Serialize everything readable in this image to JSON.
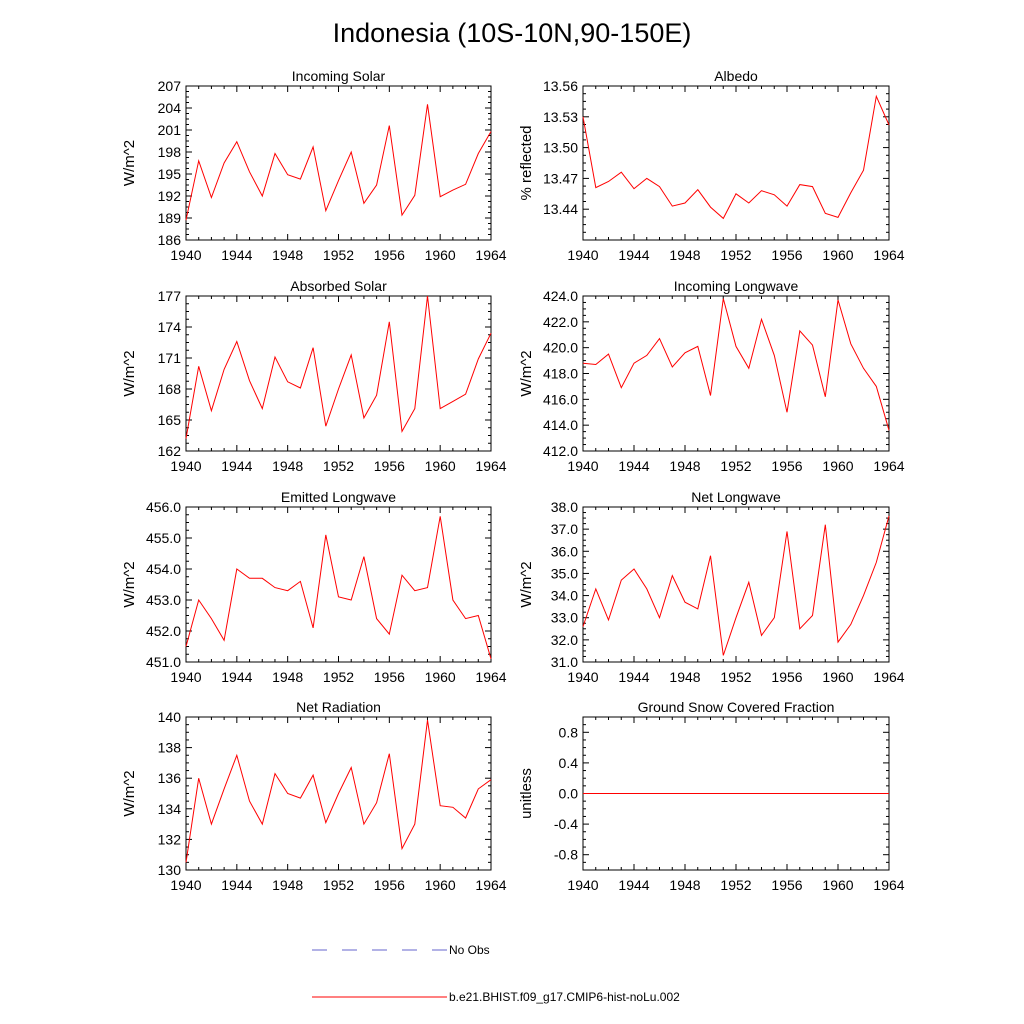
{
  "title": "Indonesia (10S-10N,90-150E)",
  "colors": {
    "model": "#ff0000",
    "obs": "#6666cc"
  },
  "legend": [
    {
      "label": "No Obs",
      "color": "#6666cc",
      "dash": true
    },
    {
      "label": "b.e21.BHIST.f09_g17.CMIP6-hist-noLu.002",
      "color": "#ff0000",
      "dash": false
    }
  ],
  "chart_data": [
    {
      "type": "line",
      "title": "Incoming Solar",
      "ylabel": "W/m^2",
      "xlim": [
        1940,
        1964
      ],
      "ylim": [
        186,
        207
      ],
      "xticks": [
        1940,
        1944,
        1948,
        1952,
        1956,
        1960,
        1964
      ],
      "yticks": [
        "186",
        "189",
        "192",
        "195",
        "198",
        "201",
        "204",
        "207"
      ],
      "x": [
        1940,
        1941,
        1942,
        1943,
        1944,
        1945,
        1946,
        1947,
        1948,
        1949,
        1950,
        1951,
        1952,
        1953,
        1954,
        1955,
        1956,
        1957,
        1958,
        1959,
        1960,
        1961,
        1962,
        1963,
        1964
      ],
      "series": [
        {
          "values": [
            188.7,
            196.8,
            191.8,
            196.5,
            199.4,
            195.3,
            192.0,
            197.8,
            194.9,
            194.3,
            198.7,
            190.0,
            194.1,
            198.0,
            191.0,
            193.5,
            201.6,
            189.4,
            192.1,
            204.5,
            191.9,
            192.8,
            193.6,
            197.8,
            200.8
          ]
        }
      ]
    },
    {
      "type": "line",
      "title": "Albedo",
      "ylabel": "% reflected",
      "xlim": [
        1940,
        1964
      ],
      "ylim": [
        13.41,
        13.56
      ],
      "xticks": [
        1940,
        1944,
        1948,
        1952,
        1956,
        1960,
        1964
      ],
      "yticks": [
        "13.44",
        "13.47",
        "13.50",
        "13.53",
        "13.56"
      ],
      "x": [
        1940,
        1941,
        1942,
        1943,
        1944,
        1945,
        1946,
        1947,
        1948,
        1949,
        1950,
        1951,
        1952,
        1953,
        1954,
        1955,
        1956,
        1957,
        1958,
        1959,
        1960,
        1961,
        1962,
        1963,
        1964
      ],
      "series": [
        {
          "values": [
            13.53,
            13.461,
            13.467,
            13.476,
            13.46,
            13.47,
            13.462,
            13.443,
            13.446,
            13.459,
            13.442,
            13.431,
            13.455,
            13.446,
            13.458,
            13.454,
            13.443,
            13.464,
            13.462,
            13.436,
            13.432,
            13.456,
            13.478,
            13.55,
            13.522
          ]
        }
      ]
    },
    {
      "type": "line",
      "title": "Absorbed Solar",
      "ylabel": "W/m^2",
      "xlim": [
        1940,
        1964
      ],
      "ylim": [
        162,
        177
      ],
      "xticks": [
        1940,
        1944,
        1948,
        1952,
        1956,
        1960,
        1964
      ],
      "yticks": [
        "162",
        "165",
        "168",
        "171",
        "174",
        "177"
      ],
      "x": [
        1940,
        1941,
        1942,
        1943,
        1944,
        1945,
        1946,
        1947,
        1948,
        1949,
        1950,
        1951,
        1952,
        1953,
        1954,
        1955,
        1956,
        1957,
        1958,
        1959,
        1960,
        1961,
        1962,
        1963,
        1964
      ],
      "series": [
        {
          "values": [
            163.2,
            170.2,
            165.9,
            169.9,
            172.6,
            168.8,
            166.1,
            171.1,
            168.7,
            168.1,
            172.0,
            164.4,
            168.0,
            171.3,
            165.2,
            167.4,
            174.5,
            163.9,
            166.1,
            177.0,
            166.1,
            166.8,
            167.5,
            170.9,
            173.4
          ]
        }
      ]
    },
    {
      "type": "line",
      "title": "Incoming Longwave",
      "ylabel": "W/m^2",
      "xlim": [
        1940,
        1964
      ],
      "ylim": [
        412.0,
        424.0
      ],
      "xticks": [
        1940,
        1944,
        1948,
        1952,
        1956,
        1960,
        1964
      ],
      "yticks": [
        "412.0",
        "414.0",
        "416.0",
        "418.0",
        "420.0",
        "422.0",
        "424.0"
      ],
      "x": [
        1940,
        1941,
        1942,
        1943,
        1944,
        1945,
        1946,
        1947,
        1948,
        1949,
        1950,
        1951,
        1952,
        1953,
        1954,
        1955,
        1956,
        1957,
        1958,
        1959,
        1960,
        1961,
        1962,
        1963,
        1964
      ],
      "series": [
        {
          "values": [
            418.8,
            418.7,
            419.5,
            416.9,
            418.8,
            419.4,
            420.7,
            418.5,
            419.6,
            420.1,
            416.3,
            423.8,
            420.1,
            418.4,
            422.2,
            419.4,
            415.0,
            421.3,
            420.2,
            416.2,
            423.7,
            420.3,
            418.4,
            417.0,
            413.6
          ]
        }
      ]
    },
    {
      "type": "line",
      "title": "Emitted Longwave",
      "ylabel": "W/m^2",
      "xlim": [
        1940,
        1964
      ],
      "ylim": [
        451.0,
        456.0
      ],
      "xticks": [
        1940,
        1944,
        1948,
        1952,
        1956,
        1960,
        1964
      ],
      "yticks": [
        "451.0",
        "452.0",
        "453.0",
        "454.0",
        "455.0",
        "456.0"
      ],
      "x": [
        1940,
        1941,
        1942,
        1943,
        1944,
        1945,
        1946,
        1947,
        1948,
        1949,
        1950,
        1951,
        1952,
        1953,
        1954,
        1955,
        1956,
        1957,
        1958,
        1959,
        1960,
        1961,
        1962,
        1963,
        1964
      ],
      "series": [
        {
          "values": [
            451.5,
            453.0,
            452.4,
            451.7,
            454.0,
            453.7,
            453.7,
            453.4,
            453.3,
            453.6,
            452.1,
            455.1,
            453.1,
            453.0,
            454.4,
            452.4,
            451.9,
            453.8,
            453.3,
            453.4,
            455.7,
            453.0,
            452.4,
            452.5,
            451.1
          ]
        }
      ]
    },
    {
      "type": "line",
      "title": "Net Longwave",
      "ylabel": "W/m^2",
      "xlim": [
        1940,
        1964
      ],
      "ylim": [
        31.0,
        38.0
      ],
      "xticks": [
        1940,
        1944,
        1948,
        1952,
        1956,
        1960,
        1964
      ],
      "yticks": [
        "31.0",
        "32.0",
        "33.0",
        "34.0",
        "35.0",
        "36.0",
        "37.0",
        "38.0"
      ],
      "x": [
        1940,
        1941,
        1942,
        1943,
        1944,
        1945,
        1946,
        1947,
        1948,
        1949,
        1950,
        1951,
        1952,
        1953,
        1954,
        1955,
        1956,
        1957,
        1958,
        1959,
        1960,
        1961,
        1962,
        1963,
        1964
      ],
      "series": [
        {
          "values": [
            32.6,
            34.3,
            32.9,
            34.7,
            35.2,
            34.3,
            33.0,
            34.9,
            33.7,
            33.4,
            35.8,
            31.3,
            33.0,
            34.6,
            32.2,
            33.0,
            36.9,
            32.5,
            33.1,
            37.2,
            31.9,
            32.7,
            34.0,
            35.5,
            37.6
          ]
        }
      ]
    },
    {
      "type": "line",
      "title": "Net Radiation",
      "ylabel": "W/m^2",
      "xlim": [
        1940,
        1964
      ],
      "ylim": [
        130,
        140
      ],
      "xticks": [
        1940,
        1944,
        1948,
        1952,
        1956,
        1960,
        1964
      ],
      "yticks": [
        "130",
        "132",
        "134",
        "136",
        "138",
        "140"
      ],
      "x": [
        1940,
        1941,
        1942,
        1943,
        1944,
        1945,
        1946,
        1947,
        1948,
        1949,
        1950,
        1951,
        1952,
        1953,
        1954,
        1955,
        1956,
        1957,
        1958,
        1959,
        1960,
        1961,
        1962,
        1963,
        1964
      ],
      "series": [
        {
          "values": [
            130.5,
            136.0,
            133.0,
            135.3,
            137.5,
            134.5,
            133.0,
            136.3,
            135.0,
            134.7,
            136.2,
            133.1,
            135.0,
            136.7,
            133.0,
            134.4,
            137.6,
            131.4,
            133.0,
            139.8,
            134.2,
            134.1,
            133.4,
            135.3,
            135.9
          ]
        }
      ]
    },
    {
      "type": "line",
      "title": "Ground Snow Covered Fraction",
      "ylabel": "unitless",
      "xlim": [
        1940,
        1964
      ],
      "ylim": [
        -1.0,
        1.0
      ],
      "xticks": [
        1940,
        1944,
        1948,
        1952,
        1956,
        1960,
        1964
      ],
      "yticks": [
        "-0.8",
        "-0.4",
        "0.0",
        "0.4",
        "0.8"
      ],
      "x": [
        1940,
        1941,
        1942,
        1943,
        1944,
        1945,
        1946,
        1947,
        1948,
        1949,
        1950,
        1951,
        1952,
        1953,
        1954,
        1955,
        1956,
        1957,
        1958,
        1959,
        1960,
        1961,
        1962,
        1963,
        1964
      ],
      "series": [
        {
          "values": [
            0,
            0,
            0,
            0,
            0,
            0,
            0,
            0,
            0,
            0,
            0,
            0,
            0,
            0,
            0,
            0,
            0,
            0,
            0,
            0,
            0,
            0,
            0,
            0,
            0
          ]
        }
      ]
    }
  ]
}
